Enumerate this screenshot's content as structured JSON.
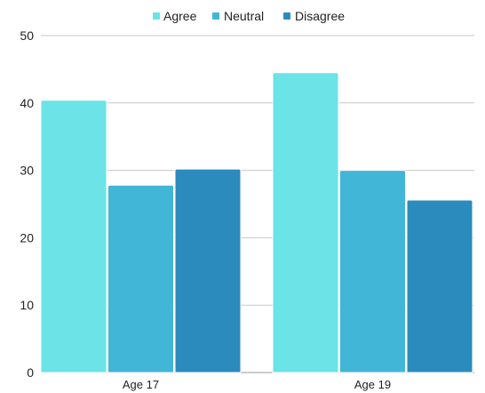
{
  "chart_data": {
    "type": "bar",
    "categories": [
      "Age 17",
      "Age 19"
    ],
    "series": [
      {
        "name": "Agree",
        "values": [
          40.4,
          44.5
        ],
        "color": "#6be3e7"
      },
      {
        "name": "Neutral",
        "values": [
          27.8,
          30.0
        ],
        "color": "#41b6d6"
      },
      {
        "name": "Disagree",
        "values": [
          30.2,
          25.6
        ],
        "color": "#2b8bbd"
      }
    ],
    "ylim": [
      0,
      50
    ],
    "yticks": [
      "0",
      "10",
      "20",
      "30",
      "40",
      "50"
    ],
    "grid": true,
    "legend_position": "top-center"
  }
}
